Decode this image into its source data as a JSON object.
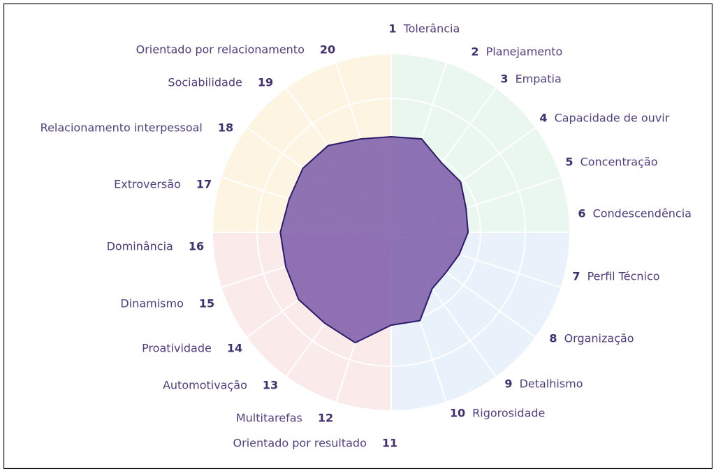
{
  "chart_data": {
    "type": "radar",
    "numbers": [
      1,
      2,
      3,
      4,
      5,
      6,
      7,
      8,
      9,
      10,
      11,
      12,
      13,
      14,
      15,
      16,
      17,
      18,
      19,
      20
    ],
    "categories": [
      "Tolerância",
      "Planejamento",
      "Empatia",
      "Capacidade de ouvir",
      "Concentração",
      "Condescendência",
      "Perfil Técnico",
      "Organização",
      "Detalhismo",
      "Rigorosidade",
      "Orientado por resultado",
      "Multitarefas",
      "Automotivação",
      "Proatividade",
      "Dinamismo",
      "Dominância",
      "Extroversão",
      "Relacionamento interpessoal",
      "Sociabilidade",
      "Orientado por relacionamento"
    ],
    "values": [
      53.5,
      55,
      48,
      48,
      44,
      43,
      40,
      38,
      39,
      52,
      52,
      65,
      63,
      64,
      62,
      62,
      60,
      61,
      60,
      55
    ],
    "color": "#7b5ba8",
    "rlim": [
      0,
      100
    ],
    "rticks": [
      25,
      50,
      75,
      100
    ],
    "grid": true
  }
}
